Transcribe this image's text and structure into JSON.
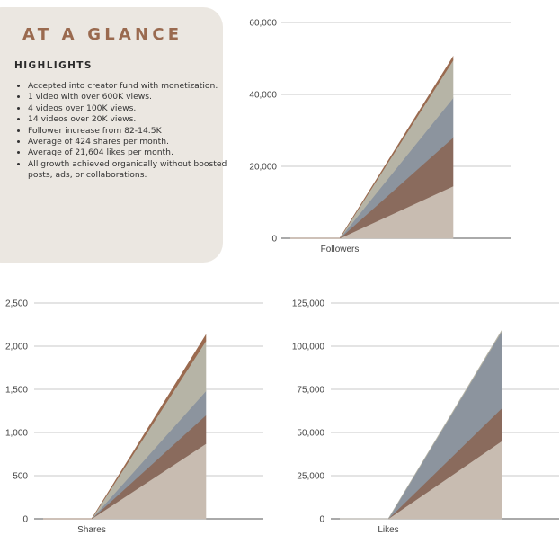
{
  "card": {
    "title": "AT A GLANCE",
    "subtitle": "HIGHLIGHTS",
    "bullets": [
      "Accepted into creator fund with monetization.",
      "1 video with over 600K views.",
      "4 videos over 100K views.",
      "14 videos over 20K views.",
      "Follower increase from 82-14.5K",
      "Average of 424 shares per month.",
      "Average of 21,604 likes per month.",
      "All growth achieved organically without boosted posts, ads, or collaborations."
    ]
  },
  "chart_data": [
    {
      "type": "area",
      "stacked": true,
      "categories": [
        "",
        "Followers",
        ""
      ],
      "yticks": [
        0,
        20000,
        40000,
        60000
      ],
      "ytick_labels": [
        "0",
        "20,000",
        "40,000",
        "60,000"
      ],
      "ylim": [
        0,
        60000
      ],
      "grid": true,
      "series": [
        {
          "values": [
            0,
            0,
            14500
          ],
          "color": "#c8bcb1"
        },
        {
          "values": [
            0,
            0,
            13500
          ],
          "color": "#8a6b5d"
        },
        {
          "values": [
            0,
            0,
            11000
          ],
          "color": "#8c949e"
        },
        {
          "values": [
            0,
            0,
            10500
          ],
          "color": "#b6b4a6"
        },
        {
          "values": [
            0,
            0,
            1000
          ],
          "color": "#9a6a4f"
        }
      ]
    },
    {
      "type": "area",
      "stacked": true,
      "categories": [
        "",
        "Shares",
        ""
      ],
      "yticks": [
        0,
        500,
        1000,
        1500,
        2000,
        2500
      ],
      "ytick_labels": [
        "0",
        "500",
        "1,000",
        "1,500",
        "2,000",
        "2,500"
      ],
      "ylim": [
        0,
        2500
      ],
      "grid": true,
      "series": [
        {
          "values": [
            0,
            0,
            870
          ],
          "color": "#c8bcb1"
        },
        {
          "values": [
            0,
            0,
            330
          ],
          "color": "#8a6b5d"
        },
        {
          "values": [
            0,
            0,
            280
          ],
          "color": "#8c949e"
        },
        {
          "values": [
            0,
            0,
            580
          ],
          "color": "#b6b4a6"
        },
        {
          "values": [
            0,
            0,
            70
          ],
          "color": "#9a6a4f"
        }
      ]
    },
    {
      "type": "area",
      "stacked": true,
      "categories": [
        "",
        "Likes",
        ""
      ],
      "yticks": [
        0,
        25000,
        50000,
        75000,
        100000,
        125000
      ],
      "ytick_labels": [
        "0",
        "25,000",
        "50,000",
        "75,000",
        "100,000",
        "125,000"
      ],
      "ylim": [
        0,
        125000
      ],
      "grid": true,
      "series": [
        {
          "values": [
            0,
            0,
            45000
          ],
          "color": "#c8bcb1"
        },
        {
          "values": [
            0,
            0,
            19000
          ],
          "color": "#8a6b5d"
        },
        {
          "values": [
            0,
            0,
            44500
          ],
          "color": "#8c949e"
        },
        {
          "values": [
            0,
            0,
            500
          ],
          "color": "#b6b4a6"
        }
      ]
    }
  ]
}
